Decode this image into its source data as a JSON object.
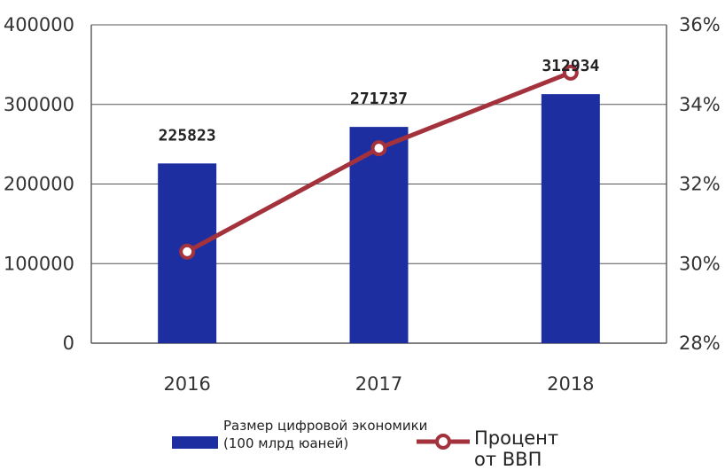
{
  "chart_data": {
    "type": "bar",
    "categories": [
      "2016",
      "2017",
      "2018"
    ],
    "series": [
      {
        "name_lines": [
          "Размер цифровой экономики",
          "(100 млрд юаней)"
        ],
        "type": "bar",
        "axis": "left",
        "values": [
          225823,
          271737,
          312934
        ],
        "data_labels": [
          "225823",
          "271737",
          "312934"
        ],
        "color": "#1d2fa0"
      },
      {
        "name": "Процент от ВВП",
        "type": "line",
        "axis": "right",
        "values": [
          30.3,
          32.9,
          34.8
        ],
        "color": "#a3323d"
      }
    ],
    "y_left": {
      "ylim": [
        0,
        400000
      ],
      "ticks": [
        0,
        100000,
        200000,
        300000,
        400000
      ],
      "tick_labels": [
        "0",
        "100000",
        "200000",
        "300000",
        "400000"
      ]
    },
    "y_right": {
      "ylim": [
        28,
        36
      ],
      "ticks": [
        28,
        30,
        32,
        34,
        36
      ],
      "tick_labels": [
        "28%",
        "30%",
        "32%",
        "34%",
        "36%"
      ]
    },
    "grid": true,
    "legend_position": "bottom"
  }
}
